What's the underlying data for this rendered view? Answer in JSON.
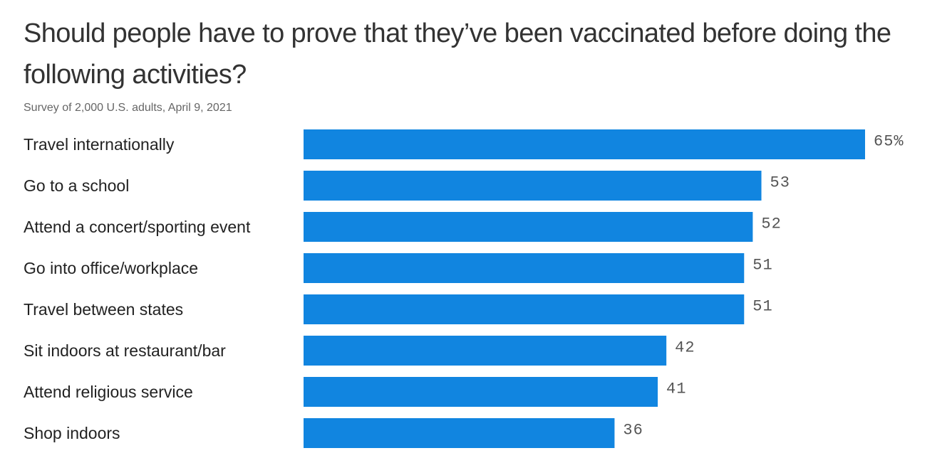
{
  "chart_data": {
    "type": "bar",
    "orientation": "horizontal",
    "title": "Should people have to prove that they’ve been vaccinated before doing the following activities?",
    "subtitle": "Survey of 2,000 U.S. adults, April 9, 2021",
    "categories": [
      "Travel internationally",
      "Go to a school",
      "Attend a concert/sporting event",
      "Go into office/workplace",
      "Travel between states",
      "Sit indoors at restaurant/bar",
      "Attend religious service",
      "Shop indoors"
    ],
    "values": [
      65,
      53,
      52,
      51,
      51,
      42,
      41,
      36
    ],
    "value_labels": [
      "65%",
      "53",
      "52",
      "51",
      "51",
      "42",
      "41",
      "36"
    ],
    "xlim": [
      0,
      65
    ],
    "grid": false,
    "legend": "none",
    "bar_color": "#1185e0"
  }
}
